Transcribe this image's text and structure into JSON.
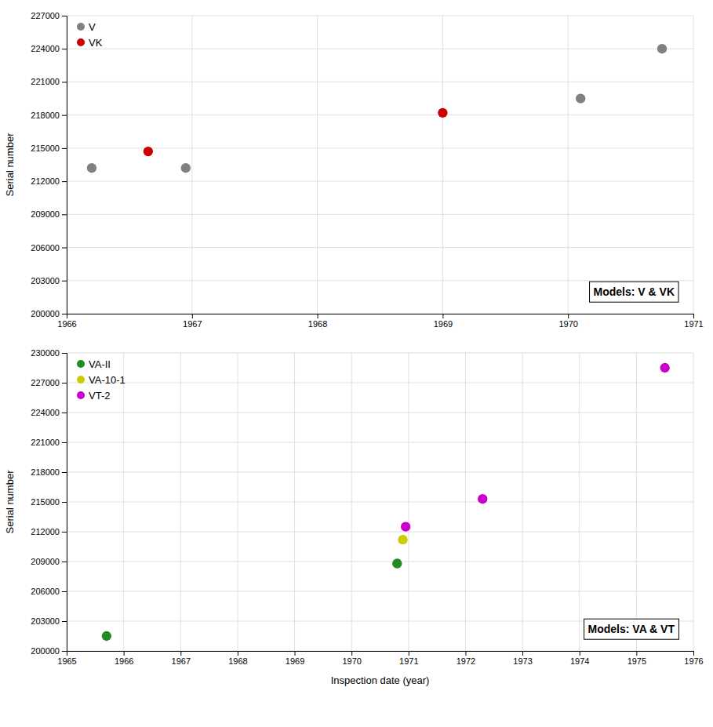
{
  "chart_data": [
    {
      "type": "scatter",
      "annotation": "Models: V & VK",
      "ylabel": "Serial number",
      "xlim": [
        1966,
        1971
      ],
      "ylim": [
        200000,
        227000
      ],
      "xticks": [
        1966,
        1967,
        1968,
        1969,
        1970,
        1971
      ],
      "yticks": [
        200000,
        203000,
        206000,
        209000,
        212000,
        215000,
        218000,
        221000,
        224000,
        227000
      ],
      "grid": true,
      "legend": "upper left",
      "marker": "circle",
      "series": [
        {
          "name": "V",
          "color": "#808080",
          "x": [
            1966.2,
            1966.95,
            1970.1,
            1970.75
          ],
          "values": [
            213200,
            213200,
            219500,
            224000
          ]
        },
        {
          "name": "VK",
          "color": "#cc0000",
          "x": [
            1966.65,
            1969.0
          ],
          "values": [
            214700,
            218200
          ]
        }
      ]
    },
    {
      "type": "scatter",
      "annotation": "Models: VA & VT",
      "xlabel": "Inspection date (year)",
      "ylabel": "Serial number",
      "xlim": [
        1965,
        1976
      ],
      "ylim": [
        200000,
        230000
      ],
      "xticks": [
        1965,
        1966,
        1967,
        1968,
        1969,
        1970,
        1971,
        1972,
        1973,
        1974,
        1975,
        1976
      ],
      "yticks": [
        200000,
        203000,
        206000,
        209000,
        212000,
        215000,
        218000,
        221000,
        224000,
        227000,
        230000
      ],
      "grid": true,
      "legend": "upper left",
      "marker": "circle",
      "series": [
        {
          "name": "VA-II",
          "color": "#228B22",
          "x": [
            1965.7,
            1970.8
          ],
          "values": [
            201500,
            208800
          ]
        },
        {
          "name": "VA-10-1",
          "color": "#cccc00",
          "x": [
            1970.9
          ],
          "values": [
            211200
          ]
        },
        {
          "name": "VT-2",
          "color": "#cc00cc",
          "x": [
            1970.95,
            1972.3,
            1975.5
          ],
          "values": [
            212500,
            215300,
            228500
          ]
        }
      ]
    }
  ]
}
